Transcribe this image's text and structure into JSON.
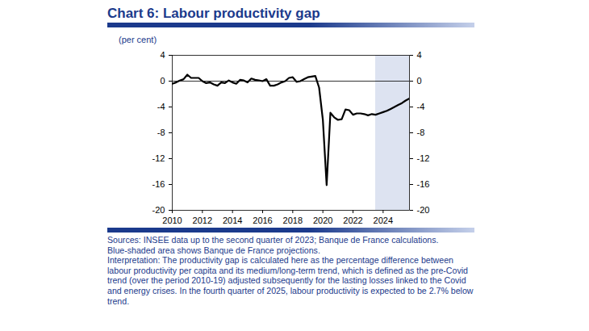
{
  "chart_data": {
    "type": "line",
    "title": "Chart 6: Labour productivity gap",
    "subtitle": "(per cent)",
    "source": "Sources: INSEE data up to the second quarter of 2023; Banque de France calculations.",
    "notes": [
      "Blue-shaded area shows Banque de France projections.",
      "Interpretation: The productivity gap is calculated here as the percentage difference between labour productivity per capita and its medium/long-term trend, which is defined as the pre-Covid trend (over the period 2010-19) adjusted subsequently for the lasting losses linked to the Covid and energy crises. In the fourth quarter of 2025, labour productivity is expected to be 2.7% below trend."
    ],
    "x": [
      2010,
      2010.25,
      2010.5,
      2010.75,
      2011,
      2011.25,
      2011.5,
      2011.75,
      2012,
      2012.25,
      2012.5,
      2012.75,
      2013,
      2013.25,
      2013.5,
      2013.75,
      2014,
      2014.25,
      2014.5,
      2014.75,
      2015,
      2015.25,
      2015.5,
      2015.75,
      2016,
      2016.25,
      2016.5,
      2016.75,
      2017,
      2017.25,
      2017.5,
      2017.75,
      2018,
      2018.25,
      2018.5,
      2018.75,
      2019,
      2019.25,
      2019.5,
      2019.75,
      2020,
      2020.25,
      2020.5,
      2020.75,
      2021,
      2021.25,
      2021.5,
      2021.75,
      2022,
      2022.25,
      2022.5,
      2022.75,
      2023,
      2023.25,
      2023.5,
      2023.75,
      2024,
      2024.25,
      2024.5,
      2024.75,
      2025,
      2025.25,
      2025.5,
      2025.75
    ],
    "series": [
      {
        "color": "#000000",
        "values": [
          -0.4,
          -0.2,
          0.1,
          0.3,
          1.0,
          0.5,
          0.5,
          0.5,
          0.0,
          -0.3,
          -0.2,
          -0.5,
          -0.7,
          -0.2,
          -0.3,
          0.1,
          -0.2,
          -0.4,
          0.2,
          0.1,
          -0.2,
          0.4,
          0.2,
          0.1,
          0.0,
          0.3,
          -0.7,
          -0.7,
          -0.5,
          -0.2,
          0.0,
          0.5,
          0.6,
          -0.1,
          0.0,
          0.3,
          0.6,
          0.7,
          0.8,
          -1.0,
          -6.0,
          -16.1,
          -4.9,
          -5.6,
          -6.0,
          -5.9,
          -4.4,
          -4.5,
          -5.2,
          -5.0,
          -5.0,
          -5.1,
          -5.3,
          -5.1,
          -5.2,
          -5.0,
          -4.8,
          -4.6,
          -4.3,
          -4.0,
          -3.7,
          -3.4,
          -3.0,
          -2.7
        ]
      }
    ],
    "xlim": [
      2010,
      2025.75
    ],
    "xticks": [
      2010,
      2012,
      2014,
      2016,
      2018,
      2020,
      2022,
      2024
    ],
    "ylim": [
      -20,
      4
    ],
    "yticks": [
      4,
      0,
      -4,
      -8,
      -12,
      -16,
      -20
    ],
    "y2lim": [
      -20,
      4
    ],
    "y2ticks": [
      4,
      0,
      -4,
      -8,
      -12,
      -16,
      -20
    ],
    "projection": [
      2023.5,
      2025.75
    ],
    "baseline": 0,
    "grid": false
  }
}
